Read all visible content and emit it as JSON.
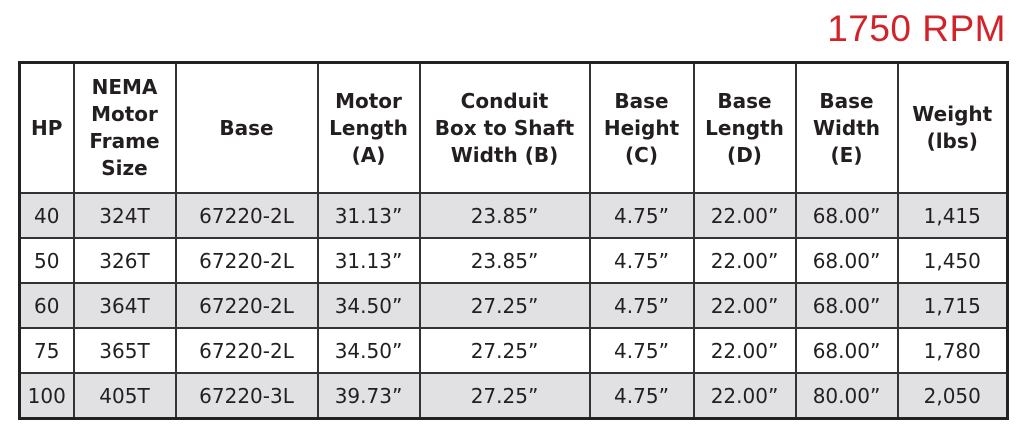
{
  "header": {
    "title": "1750 RPM"
  },
  "table": {
    "columns": [
      "HP",
      "NEMA\nMotor\nFrame\nSize",
      "Base",
      "Motor\nLength\n(A)",
      "Conduit\nBox to Shaft\nWidth (B)",
      "Base\nHeight\n(C)",
      "Base\nLength\n(D)",
      "Base\nWidth\n(E)",
      "Weight\n(lbs)"
    ],
    "rows": [
      [
        "40",
        "324T",
        "67220-2L",
        "31.13”",
        "23.85”",
        "4.75”",
        "22.00”",
        "68.00”",
        "1,415"
      ],
      [
        "50",
        "326T",
        "67220-2L",
        "31.13”",
        "23.85”",
        "4.75”",
        "22.00”",
        "68.00”",
        "1,450"
      ],
      [
        "60",
        "364T",
        "67220-2L",
        "34.50”",
        "27.25”",
        "4.75”",
        "22.00”",
        "68.00”",
        "1,715"
      ],
      [
        "75",
        "365T",
        "67220-2L",
        "34.50”",
        "27.25”",
        "4.75”",
        "22.00”",
        "68.00”",
        "1,780"
      ],
      [
        "100",
        "405T",
        "67220-3L",
        "39.73”",
        "27.25”",
        "4.75”",
        "22.00”",
        "80.00”",
        "2,050"
      ]
    ]
  }
}
